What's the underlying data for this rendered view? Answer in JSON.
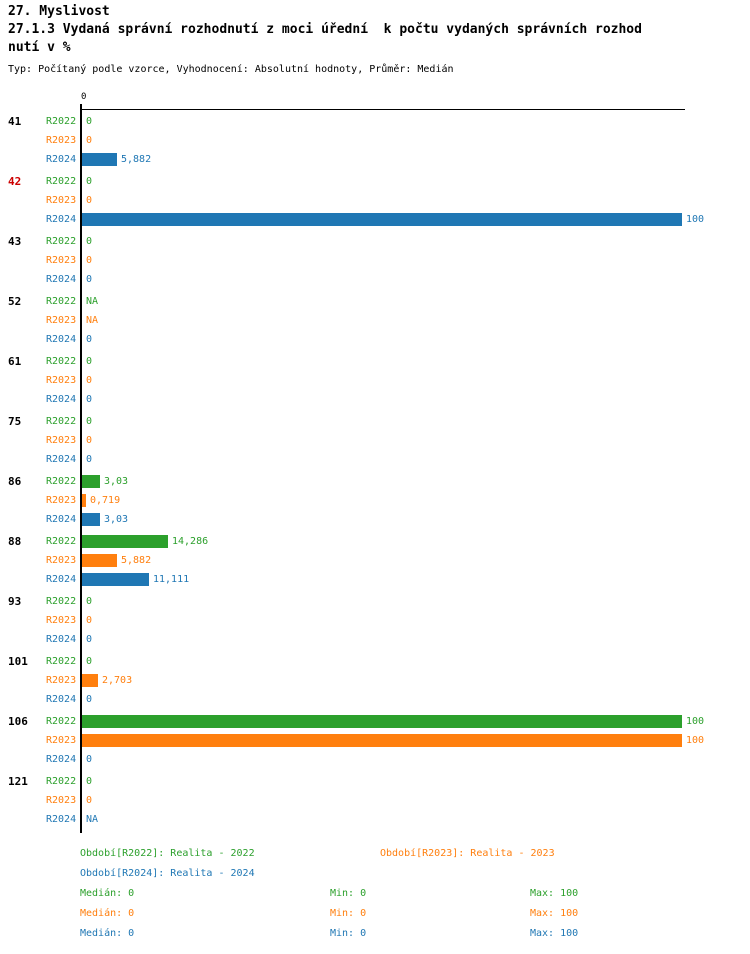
{
  "header": {
    "title": "27. Myslivost",
    "subtitle_line1": "27.1.3 Vydaná správní rozhodnutí z moci úřední  k počtu vydaných správních rozhod",
    "subtitle_line2": "nutí v %",
    "meta": "Typ: Počítaný podle vzorce, Vyhodnocení: Absolutní hodnoty, Průměr: Medián"
  },
  "chart_data": {
    "type": "bar",
    "orientation": "horizontal",
    "title": "27.1.3 Vydaná správní rozhodnutí z moci úřední k počtu vydaných správních rozhodnutí v %",
    "x_axis": {
      "origin_label": "0",
      "min": 0,
      "max": 100
    },
    "grid": false,
    "series_names": [
      "R2022",
      "R2023",
      "R2024"
    ],
    "series_colors": {
      "R2022": "#2ca02c",
      "R2023": "#ff7f0e",
      "R2024": "#1f77b4"
    },
    "categories": [
      {
        "label": "41",
        "label_color": "#000000",
        "bars": [
          {
            "series": "R2022",
            "value": 0,
            "display": "0"
          },
          {
            "series": "R2023",
            "value": 0,
            "display": "0"
          },
          {
            "series": "R2024",
            "value": 5.882,
            "display": "5,882"
          }
        ]
      },
      {
        "label": "42",
        "label_color": "#cc0000",
        "bars": [
          {
            "series": "R2022",
            "value": 0,
            "display": "0"
          },
          {
            "series": "R2023",
            "value": 0,
            "display": "0"
          },
          {
            "series": "R2024",
            "value": 100,
            "display": "100"
          }
        ]
      },
      {
        "label": "43",
        "label_color": "#000000",
        "bars": [
          {
            "series": "R2022",
            "value": 0,
            "display": "0"
          },
          {
            "series": "R2023",
            "value": 0,
            "display": "0"
          },
          {
            "series": "R2024",
            "value": 0,
            "display": "0"
          }
        ]
      },
      {
        "label": "52",
        "label_color": "#000000",
        "bars": [
          {
            "series": "R2022",
            "value": null,
            "display": "NA"
          },
          {
            "series": "R2023",
            "value": null,
            "display": "NA"
          },
          {
            "series": "R2024",
            "value": 0,
            "display": "0"
          }
        ]
      },
      {
        "label": "61",
        "label_color": "#000000",
        "bars": [
          {
            "series": "R2022",
            "value": 0,
            "display": "0"
          },
          {
            "series": "R2023",
            "value": 0,
            "display": "0"
          },
          {
            "series": "R2024",
            "value": 0,
            "display": "0"
          }
        ]
      },
      {
        "label": "75",
        "label_color": "#000000",
        "bars": [
          {
            "series": "R2022",
            "value": 0,
            "display": "0"
          },
          {
            "series": "R2023",
            "value": 0,
            "display": "0"
          },
          {
            "series": "R2024",
            "value": 0,
            "display": "0"
          }
        ]
      },
      {
        "label": "86",
        "label_color": "#000000",
        "bars": [
          {
            "series": "R2022",
            "value": 3.03,
            "display": "3,03"
          },
          {
            "series": "R2023",
            "value": 0.719,
            "display": "0,719"
          },
          {
            "series": "R2024",
            "value": 3.03,
            "display": "3,03"
          }
        ]
      },
      {
        "label": "88",
        "label_color": "#000000",
        "bars": [
          {
            "series": "R2022",
            "value": 14.286,
            "display": "14,286"
          },
          {
            "series": "R2023",
            "value": 5.882,
            "display": "5,882"
          },
          {
            "series": "R2024",
            "value": 11.111,
            "display": "11,111"
          }
        ]
      },
      {
        "label": "93",
        "label_color": "#000000",
        "bars": [
          {
            "series": "R2022",
            "value": 0,
            "display": "0"
          },
          {
            "series": "R2023",
            "value": 0,
            "display": "0"
          },
          {
            "series": "R2024",
            "value": 0,
            "display": "0"
          }
        ]
      },
      {
        "label": "101",
        "label_color": "#000000",
        "bars": [
          {
            "series": "R2022",
            "value": 0,
            "display": "0"
          },
          {
            "series": "R2023",
            "value": 2.703,
            "display": "2,703"
          },
          {
            "series": "R2024",
            "value": 0,
            "display": "0"
          }
        ]
      },
      {
        "label": "106",
        "label_color": "#000000",
        "bars": [
          {
            "series": "R2022",
            "value": 100,
            "display": "100"
          },
          {
            "series": "R2023",
            "value": 100,
            "display": "100"
          },
          {
            "series": "R2024",
            "value": 0,
            "display": "0"
          }
        ]
      },
      {
        "label": "121",
        "label_color": "#000000",
        "bars": [
          {
            "series": "R2022",
            "value": 0,
            "display": "0"
          },
          {
            "series": "R2023",
            "value": 0,
            "display": "0"
          },
          {
            "series": "R2024",
            "value": null,
            "display": "NA"
          }
        ]
      }
    ]
  },
  "legend": [
    {
      "text": "Období[R2022]: Realita - 2022",
      "color": "#2ca02c",
      "row": 0,
      "col": 0
    },
    {
      "text": "Období[R2023]: Realita - 2023",
      "color": "#ff7f0e",
      "row": 0,
      "col": 1
    },
    {
      "text": "Období[R2024]: Realita - 2024",
      "color": "#1f77b4",
      "row": 1,
      "col": 0
    }
  ],
  "stats": [
    {
      "median": "Medián: 0",
      "min": "Min: 0",
      "max": "Max: 100",
      "color": "#2ca02c"
    },
    {
      "median": "Medián: 0",
      "min": "Min: 0",
      "max": "Max: 100",
      "color": "#ff7f0e"
    },
    {
      "median": "Medián: 0",
      "min": "Min: 0",
      "max": "Max: 100",
      "color": "#1f77b4"
    }
  ]
}
